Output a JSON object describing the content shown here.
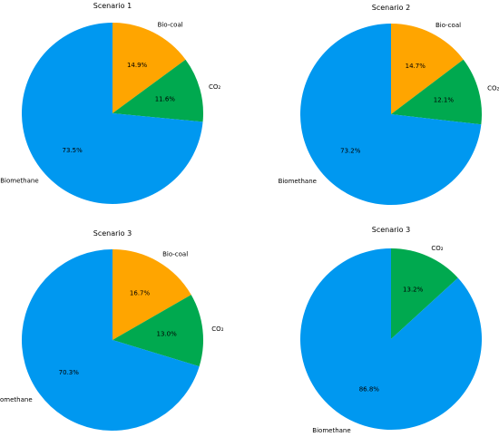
{
  "chart_data": [
    {
      "type": "pie",
      "title": "Scenario 1",
      "slices": [
        {
          "label": "Bio-coal",
          "value": 14.9,
          "pct_text": "14.9%",
          "color": "#FFA500"
        },
        {
          "label": "CO₂",
          "value": 11.6,
          "pct_text": "11.6%",
          "color": "#00A94F"
        },
        {
          "label": "Biomethane",
          "value": 73.5,
          "pct_text": "73.5%",
          "color": "#0098F0"
        }
      ],
      "start": "top (12 o'clock), clockwise"
    },
    {
      "type": "pie",
      "title": "Scenario 2",
      "slices": [
        {
          "label": "Bio-coal",
          "value": 14.7,
          "pct_text": "14.7%",
          "color": "#FFA500"
        },
        {
          "label": "CO₂",
          "value": 12.1,
          "pct_text": "12.1%",
          "color": "#00A94F"
        },
        {
          "label": "Biomethane",
          "value": 73.2,
          "pct_text": "73.2%",
          "color": "#0098F0"
        }
      ],
      "start": "top (12 o'clock), clockwise"
    },
    {
      "type": "pie",
      "title": "Scenario 3",
      "slices": [
        {
          "label": "Bio-coal",
          "value": 16.7,
          "pct_text": "16.7%",
          "color": "#FFA500"
        },
        {
          "label": "CO₂",
          "value": 13.0,
          "pct_text": "13.0%",
          "color": "#00A94F"
        },
        {
          "label": "Biomethane",
          "value": 70.3,
          "pct_text": "70.3%",
          "color": "#0098F0"
        }
      ],
      "start": "top (12 o'clock), clockwise"
    },
    {
      "type": "pie",
      "title": "Scenario 3",
      "slices": [
        {
          "label": "CO₂",
          "value": 13.2,
          "pct_text": "13.2%",
          "color": "#00A94F"
        },
        {
          "label": "Biomethane",
          "value": 86.8,
          "pct_text": "86.8%",
          "color": "#0098F0"
        }
      ],
      "start": "top (12 o'clock), clockwise"
    }
  ]
}
